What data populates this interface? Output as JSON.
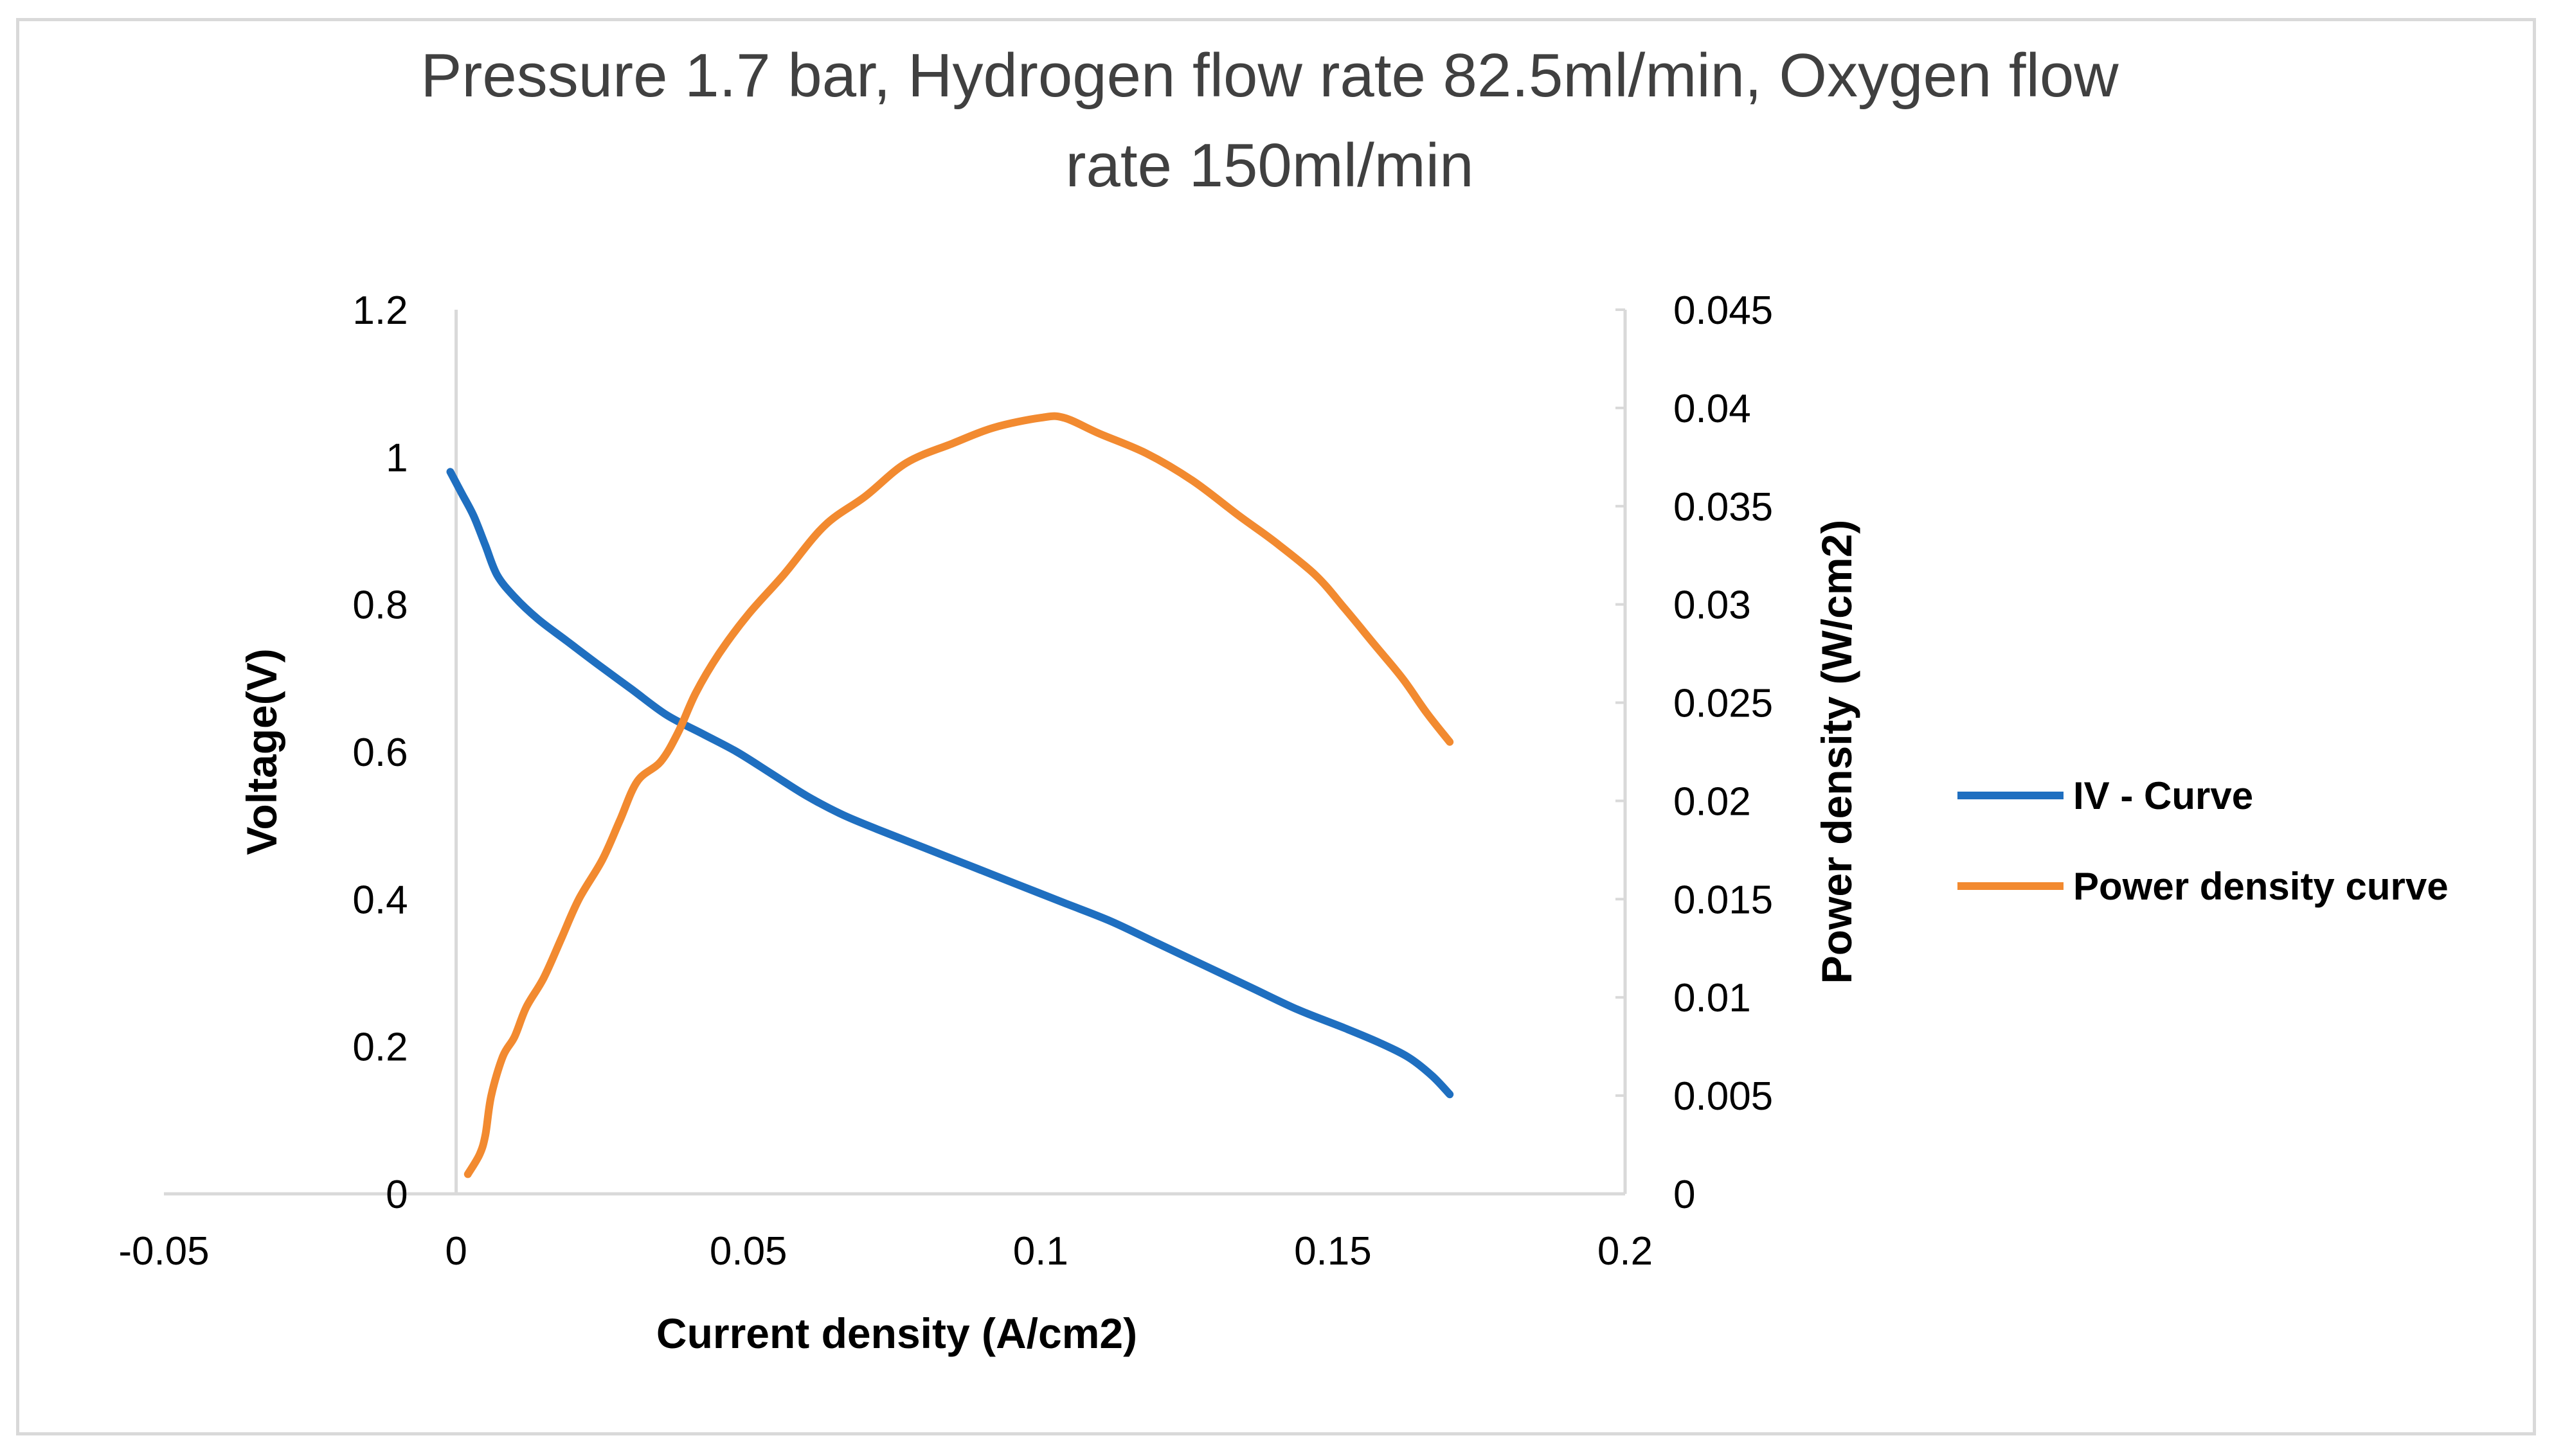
{
  "chart_data": {
    "type": "line",
    "title_lines": [
      "Pressure 1.7 bar, Hydrogen flow rate 82.5ml/min, Oxygen flow",
      "rate 150ml/min"
    ],
    "xlabel": "Current density (A/cm2)",
    "ylabel": "Voltage(V)",
    "y2label": "Power density (W/cm2)",
    "xlim": [
      -0.05,
      0.2
    ],
    "ylim": [
      0,
      1.2
    ],
    "y2lim": [
      0,
      0.045
    ],
    "x_ticks": [
      "-0.05",
      "0",
      "0.05",
      "0.1",
      "0.15",
      "0.2"
    ],
    "y_ticks": [
      "0",
      "0.2",
      "0.4",
      "0.6",
      "0.8",
      "1",
      "1.2"
    ],
    "y2_ticks": [
      "0",
      "0.005",
      "0.01",
      "0.015",
      "0.02",
      "0.025",
      "0.03",
      "0.035",
      "0.04",
      "0.045"
    ],
    "legend_position": "right",
    "series": [
      {
        "name": "IV - Curve",
        "axis": "left",
        "color": "#1f6fc0",
        "x": [
          -0.001,
          0.001,
          0.003,
          0.005,
          0.007,
          0.01,
          0.014,
          0.019,
          0.024,
          0.03,
          0.036,
          0.042,
          0.048,
          0.054,
          0.06,
          0.066,
          0.072,
          0.08,
          0.088,
          0.096,
          0.104,
          0.112,
          0.12,
          0.128,
          0.136,
          0.144,
          0.152,
          0.158,
          0.163,
          0.167,
          0.17
        ],
        "values": [
          0.98,
          0.95,
          0.92,
          0.88,
          0.84,
          0.81,
          0.78,
          0.75,
          0.72,
          0.685,
          0.65,
          0.625,
          0.6,
          0.57,
          0.54,
          0.515,
          0.495,
          0.47,
          0.445,
          0.42,
          0.395,
          0.37,
          0.34,
          0.31,
          0.28,
          0.25,
          0.225,
          0.205,
          0.185,
          0.16,
          0.135
        ]
      },
      {
        "name": "Power density curve",
        "axis": "right",
        "color": "#f28a30",
        "x": [
          0.002,
          0.004,
          0.005,
          0.006,
          0.008,
          0.01,
          0.012,
          0.015,
          0.018,
          0.021,
          0.025,
          0.028,
          0.031,
          0.035,
          0.038,
          0.041,
          0.045,
          0.05,
          0.056,
          0.063,
          0.07,
          0.077,
          0.085,
          0.092,
          0.1,
          0.104,
          0.11,
          0.118,
          0.126,
          0.134,
          0.14,
          0.147,
          0.152,
          0.157,
          0.162,
          0.166,
          0.17
        ],
        "values": [
          0.001,
          0.002,
          0.003,
          0.005,
          0.007,
          0.008,
          0.0095,
          0.011,
          0.013,
          0.015,
          0.017,
          0.019,
          0.021,
          0.022,
          0.0235,
          0.0255,
          0.0275,
          0.0295,
          0.0315,
          0.034,
          0.0355,
          0.0372,
          0.0382,
          0.039,
          0.0395,
          0.0395,
          0.0387,
          0.0377,
          0.0363,
          0.0345,
          0.0332,
          0.0315,
          0.0298,
          0.028,
          0.0262,
          0.0245,
          0.023
        ]
      }
    ]
  }
}
